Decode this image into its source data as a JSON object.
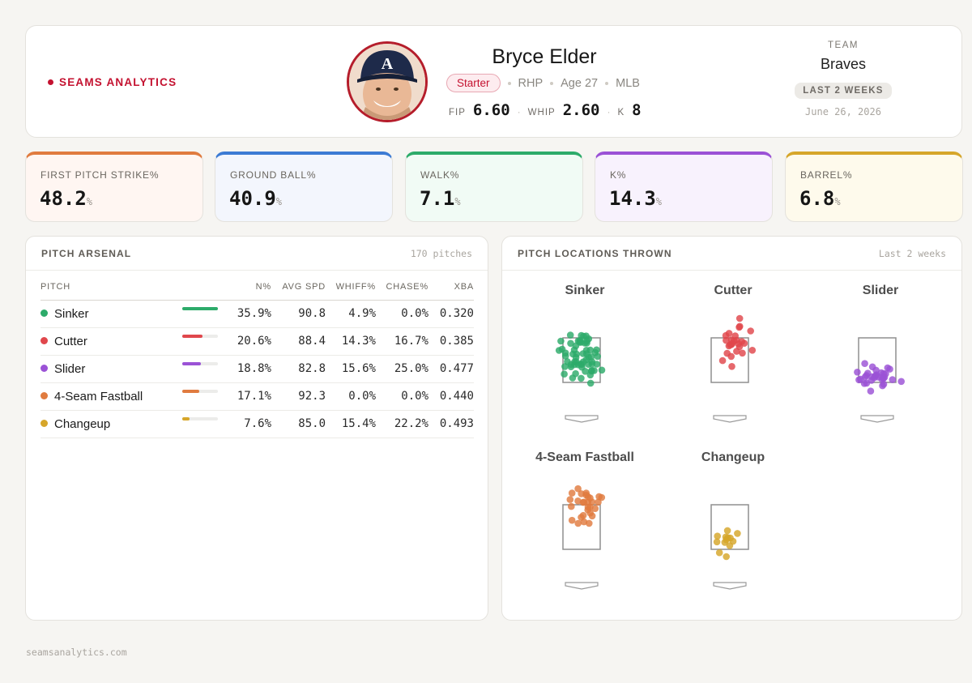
{
  "brand": "SEAMS ANALYTICS",
  "player": {
    "name": "Bryce Elder",
    "role": "Starter",
    "hand": "RHP",
    "age": "Age 27",
    "league": "MLB",
    "stats": [
      {
        "label": "FIP",
        "value": "6.60"
      },
      {
        "label": "WHIP",
        "value": "2.60"
      },
      {
        "label": "K",
        "value": "8"
      }
    ]
  },
  "team": {
    "label": "TEAM",
    "name": "Braves",
    "period": "LAST 2 WEEKS",
    "date": "June 26, 2026"
  },
  "metrics": [
    {
      "label": "FIRST PITCH STRIKE%",
      "value": "48.2",
      "unit": "%",
      "accent": "#e07b3f",
      "bg": "#fff6f2"
    },
    {
      "label": "GROUND BALL%",
      "value": "40.9",
      "unit": "%",
      "accent": "#3c7bd4",
      "bg": "#f3f6fd"
    },
    {
      "label": "WALK%",
      "value": "7.1",
      "unit": "%",
      "accent": "#2dab6a",
      "bg": "#f1fbf5"
    },
    {
      "label": "K%",
      "value": "14.3",
      "unit": "%",
      "accent": "#9b52d6",
      "bg": "#f8f2fd"
    },
    {
      "label": "BARREL%",
      "value": "6.8",
      "unit": "%",
      "accent": "#d6a62a",
      "bg": "#fefaec"
    }
  ],
  "arsenal": {
    "title": "PITCH ARSENAL",
    "count": "170 pitches",
    "headers": [
      "PITCH",
      "N%",
      "AVG SPD",
      "WHIFF%",
      "CHASE%",
      "XBA"
    ],
    "rows": [
      {
        "pitch": "Sinker",
        "color": "#2dab6a",
        "usage": 35.9,
        "n": "35.9%",
        "spd": "90.8",
        "whiff": "4.9%",
        "chase": "0.0%",
        "xba": "0.320"
      },
      {
        "pitch": "Cutter",
        "color": "#e0474c",
        "usage": 20.6,
        "n": "20.6%",
        "spd": "88.4",
        "whiff": "14.3%",
        "chase": "16.7%",
        "xba": "0.385"
      },
      {
        "pitch": "Slider",
        "color": "#9b52d6",
        "usage": 18.8,
        "n": "18.8%",
        "spd": "82.8",
        "whiff": "15.6%",
        "chase": "25.0%",
        "xba": "0.477"
      },
      {
        "pitch": "4-Seam Fastball",
        "color": "#e07b3f",
        "usage": 17.1,
        "n": "17.1%",
        "spd": "92.3",
        "whiff": "0.0%",
        "chase": "0.0%",
        "xba": "0.440"
      },
      {
        "pitch": "Changeup",
        "color": "#d6a62a",
        "usage": 7.6,
        "n": "7.6%",
        "spd": "85.0",
        "whiff": "15.4%",
        "chase": "22.2%",
        "xba": "0.493"
      }
    ]
  },
  "locations": {
    "title": "PITCH LOCATIONS THROWN",
    "period": "Last 2 weeks",
    "zones": [
      "Sinker",
      "Cutter",
      "Slider",
      "4-Seam Fastball",
      "Changeup"
    ]
  },
  "footer": "seamsanalytics.com"
}
